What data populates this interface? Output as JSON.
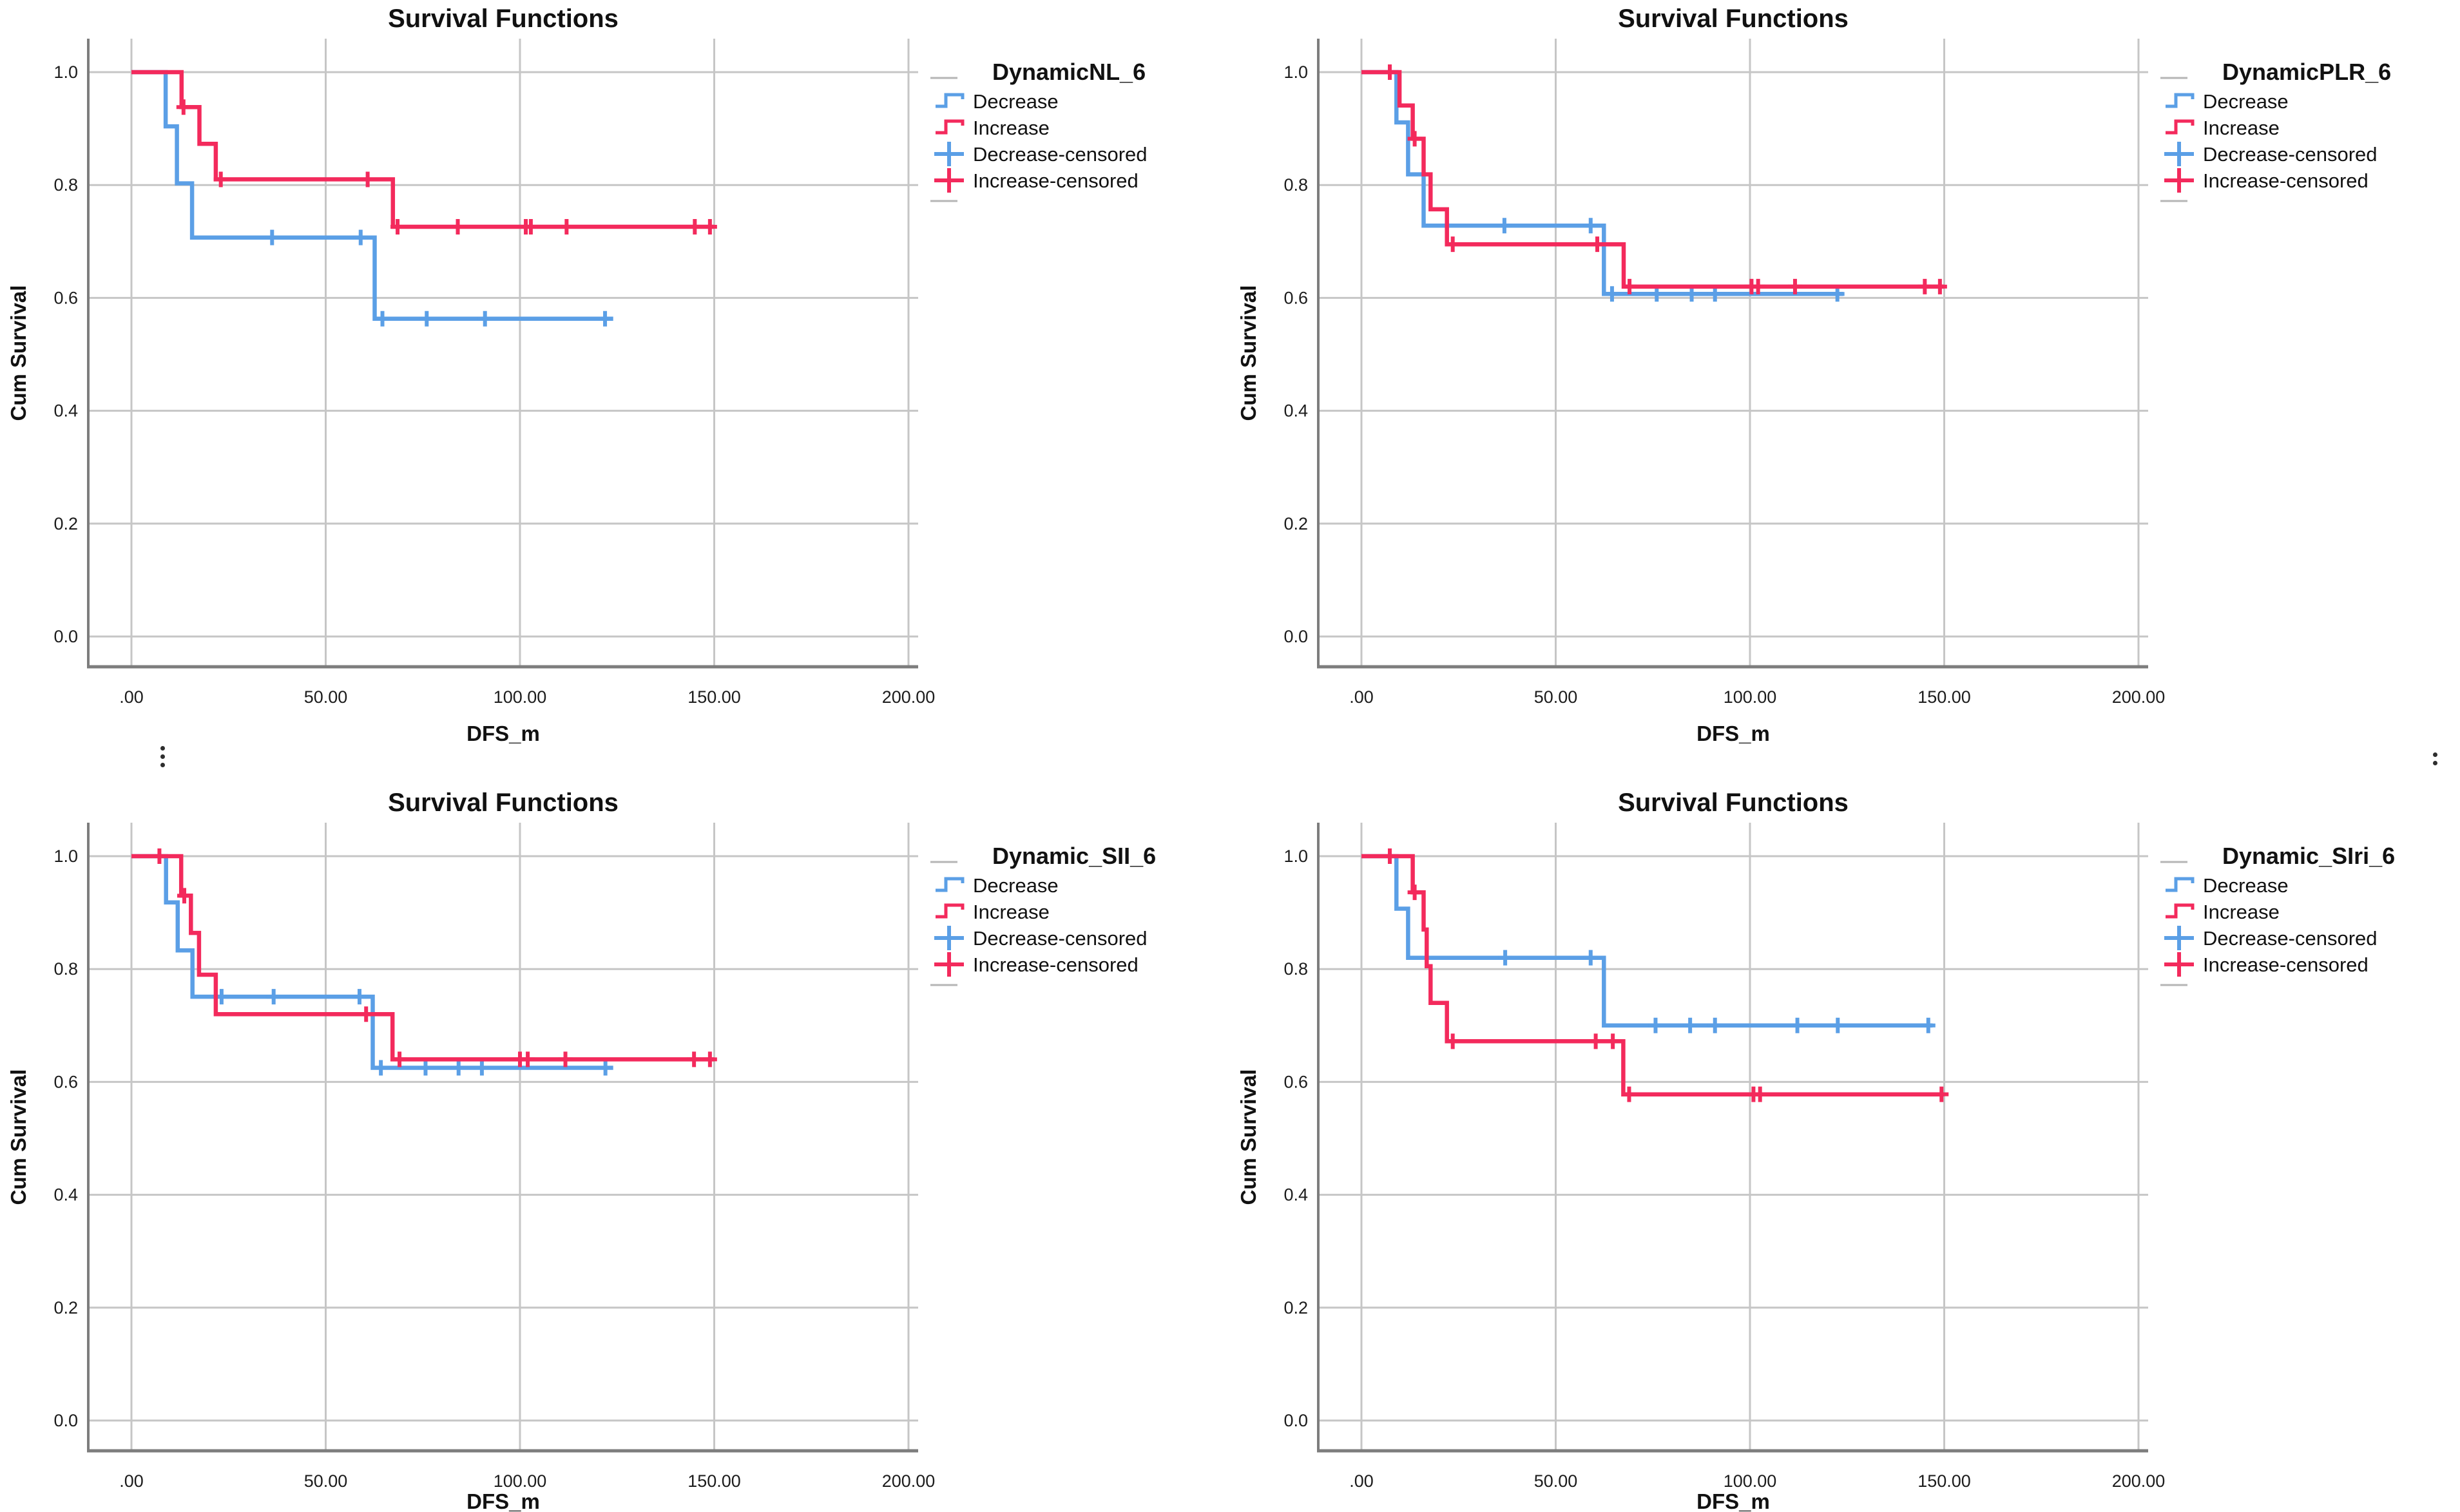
{
  "figure": {
    "background": "#ffffff",
    "ellipsis_marks": {
      "left_dot_count": 3,
      "right_dot_count": 2
    }
  },
  "colors": {
    "decrease": "#5B9FE6",
    "increase": "#F32A5C",
    "gridline": "#C6C6C6",
    "axis": "#7D7D7D",
    "text": "#111111"
  },
  "legend": {
    "items": [
      "Decrease",
      "Increase",
      "Decrease-censored",
      "Increase-censored"
    ]
  },
  "axes": {
    "x": {
      "label": "DFS_m",
      "tick_labels": [
        ".00",
        "50.00",
        "100.00",
        "150.00",
        "200.00"
      ],
      "tick_values": [
        0,
        50,
        100,
        150,
        200
      ],
      "range": [
        0,
        213
      ]
    },
    "y": {
      "label": "Cum Survival",
      "tick_labels": [
        "0.0",
        "0.2",
        "0.4",
        "0.6",
        "0.8",
        "1.0"
      ],
      "tick_values": [
        0,
        0.2,
        0.4,
        0.6,
        0.8,
        1.0
      ],
      "range": [
        0,
        1.08
      ]
    }
  },
  "chart_data": [
    {
      "type": "line",
      "title": "Survival Functions",
      "xlabel": "DFS_m",
      "ylabel": "Cum Survival",
      "legend_title": "DynamicNL_6",
      "series": [
        {
          "name": "Decrease",
          "color_key": "decrease",
          "steps": [
            [
              8.8,
              0.904
            ],
            [
              11.7,
              0.803
            ],
            [
              15.6,
              0.707
            ],
            [
              62.6,
              0.563
            ]
          ],
          "end": 124,
          "censored": [
            [
              36.2,
              0.707
            ],
            [
              59,
              0.707
            ],
            [
              64.6,
              0.563
            ],
            [
              76,
              0.563
            ],
            [
              91,
              0.563
            ],
            [
              121.9,
              0.563
            ]
          ]
        },
        {
          "name": "Increase",
          "color_key": "increase",
          "steps": [
            [
              12.9,
              0.938
            ],
            [
              17.5,
              0.873
            ],
            [
              21.7,
              0.81
            ],
            [
              67.3,
              0.726
            ]
          ],
          "end": 150,
          "censored": [
            [
              13.4,
              0.938
            ],
            [
              23,
              0.81
            ],
            [
              60.8,
              0.81
            ],
            [
              68.5,
              0.726
            ],
            [
              84,
              0.726
            ],
            [
              101.5,
              0.726
            ],
            [
              102.8,
              0.726
            ],
            [
              112,
              0.726
            ],
            [
              145,
              0.726
            ],
            [
              148.9,
              0.726
            ]
          ]
        }
      ]
    },
    {
      "type": "line",
      "title": "Survival Functions",
      "xlabel": "DFS_m",
      "ylabel": "Cum Survival",
      "legend_title": "DynamicPLR_6",
      "series": [
        {
          "name": "Decrease",
          "color_key": "decrease",
          "steps": [
            [
              9,
              0.911
            ],
            [
              12,
              0.819
            ],
            [
              16,
              0.728
            ],
            [
              62.4,
              0.607
            ]
          ],
          "end": 124,
          "censored": [
            [
              36.8,
              0.728
            ],
            [
              59,
              0.728
            ],
            [
              64.5,
              0.607
            ],
            [
              76,
              0.607
            ],
            [
              85,
              0.607
            ],
            [
              91,
              0.607
            ],
            [
              122.5,
              0.607
            ]
          ]
        },
        {
          "name": "Increase",
          "color_key": "increase",
          "steps": [
            [
              9.8,
              0.941
            ],
            [
              13.2,
              0.882
            ],
            [
              16,
              0.819
            ],
            [
              17.8,
              0.757
            ],
            [
              22,
              0.695
            ],
            [
              67.5,
              0.62
            ]
          ],
          "end": 150,
          "censored": [
            [
              7.3,
              1.0
            ],
            [
              13.7,
              0.882
            ],
            [
              23.5,
              0.695
            ],
            [
              60.7,
              0.695
            ],
            [
              69,
              0.62
            ],
            [
              100.4,
              0.62
            ],
            [
              102.1,
              0.62
            ],
            [
              111.6,
              0.62
            ],
            [
              145,
              0.62
            ],
            [
              148.9,
              0.62
            ]
          ]
        }
      ]
    },
    {
      "type": "line",
      "title": "Survival Functions",
      "xlabel": "DFS_m",
      "ylabel": "Cum Survival",
      "legend_title": "Dynamic_SII_6",
      "series": [
        {
          "name": "Decrease",
          "color_key": "decrease",
          "steps": [
            [
              8.9,
              0.918
            ],
            [
              11.9,
              0.833
            ],
            [
              15.7,
              0.751
            ],
            [
              62.1,
              0.625
            ]
          ],
          "end": 124,
          "censored": [
            [
              23.2,
              0.751
            ],
            [
              36.6,
              0.751
            ],
            [
              58.7,
              0.751
            ],
            [
              64.2,
              0.625
            ],
            [
              75.7,
              0.625
            ],
            [
              84.2,
              0.625
            ],
            [
              90.2,
              0.625
            ],
            [
              122,
              0.625
            ]
          ]
        },
        {
          "name": "Increase",
          "color_key": "increase",
          "steps": [
            [
              12.8,
              0.93
            ],
            [
              15.3,
              0.864
            ],
            [
              17.4,
              0.79
            ],
            [
              21.7,
              0.72
            ],
            [
              67.2,
              0.64
            ]
          ],
          "end": 150,
          "censored": [
            [
              7.2,
              1.0
            ],
            [
              13.6,
              0.93
            ],
            [
              60.4,
              0.72
            ],
            [
              69,
              0.64
            ],
            [
              100,
              0.64
            ],
            [
              102,
              0.64
            ],
            [
              111.7,
              0.64
            ],
            [
              144.8,
              0.64
            ],
            [
              148.9,
              0.64
            ]
          ]
        }
      ]
    },
    {
      "type": "line",
      "title": "Survival Functions",
      "xlabel": "DFS_m",
      "ylabel": "Cum Survival",
      "legend_title": "Dynamic_SIri_6",
      "series": [
        {
          "name": "Decrease",
          "color_key": "decrease",
          "steps": [
            [
              9,
              0.907
            ],
            [
              12,
              0.82
            ],
            [
              62.4,
              0.7
            ]
          ],
          "end": 147,
          "censored": [
            [
              37,
              0.82
            ],
            [
              59,
              0.82
            ],
            [
              75.7,
              0.7
            ],
            [
              84.6,
              0.7
            ],
            [
              91,
              0.7
            ],
            [
              112.2,
              0.7
            ],
            [
              122.6,
              0.7
            ],
            [
              145.9,
              0.7
            ]
          ]
        },
        {
          "name": "Increase",
          "color_key": "increase",
          "steps": [
            [
              13.2,
              0.936
            ],
            [
              16,
              0.87
            ],
            [
              16.8,
              0.805
            ],
            [
              17.8,
              0.74
            ],
            [
              22,
              0.672
            ],
            [
              67.4,
              0.578
            ]
          ],
          "end": 150,
          "censored": [
            [
              7.3,
              1.0
            ],
            [
              13.7,
              0.936
            ],
            [
              23.5,
              0.672
            ],
            [
              60.3,
              0.672
            ],
            [
              64.7,
              0.672
            ],
            [
              68.9,
              0.578
            ],
            [
              100.9,
              0.578
            ],
            [
              102.6,
              0.578
            ],
            [
              149.3,
              0.578
            ]
          ]
        }
      ]
    }
  ]
}
